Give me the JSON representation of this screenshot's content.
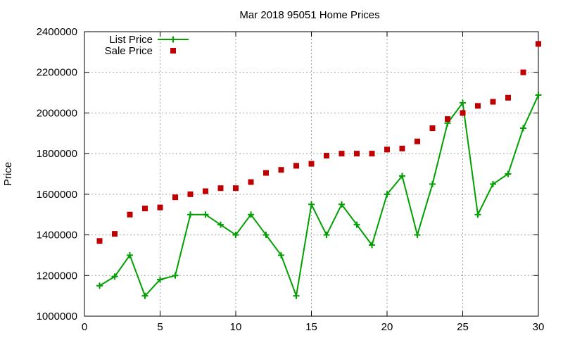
{
  "chart_data": {
    "type": "line",
    "title": "Mar 2018 95051 Home Prices",
    "xlabel": "",
    "ylabel": "Price",
    "xlim": [
      0,
      30
    ],
    "ylim": [
      1000000,
      2400000
    ],
    "x_ticks": [
      0,
      5,
      10,
      15,
      20,
      25,
      30
    ],
    "y_ticks": [
      1000000,
      1200000,
      1400000,
      1600000,
      1800000,
      2000000,
      2200000,
      2400000
    ],
    "grid": true,
    "legend_position": "top-left",
    "x": [
      1,
      2,
      3,
      4,
      5,
      6,
      7,
      8,
      9,
      10,
      11,
      12,
      13,
      14,
      15,
      16,
      17,
      18,
      19,
      20,
      21,
      22,
      23,
      24,
      25,
      26,
      27,
      28,
      29,
      30
    ],
    "series": [
      {
        "name": "List Price",
        "style": "line-with-plus-markers",
        "color": "#00a000",
        "values": [
          1150000,
          1195000,
          1300000,
          1100000,
          1180000,
          1200000,
          1500000,
          1500000,
          1450000,
          1400000,
          1500000,
          1400000,
          1300000,
          1100000,
          1550000,
          1400000,
          1550000,
          1450000,
          1350000,
          1600000,
          1690000,
          1400000,
          1650000,
          1950000,
          2050000,
          1500000,
          1650000,
          1700000,
          1925000,
          2088000
        ]
      },
      {
        "name": "Sale Price",
        "style": "square-markers",
        "color": "#c00000",
        "values": [
          1370000,
          1405000,
          1500000,
          1530000,
          1535000,
          1585000,
          1600000,
          1615000,
          1630000,
          1630000,
          1660000,
          1705000,
          1720000,
          1740000,
          1750000,
          1790000,
          1800000,
          1800000,
          1800000,
          1820000,
          1825000,
          1860000,
          1925000,
          1970000,
          2000000,
          2035000,
          2055000,
          2075000,
          2200000,
          2340000
        ]
      }
    ]
  }
}
